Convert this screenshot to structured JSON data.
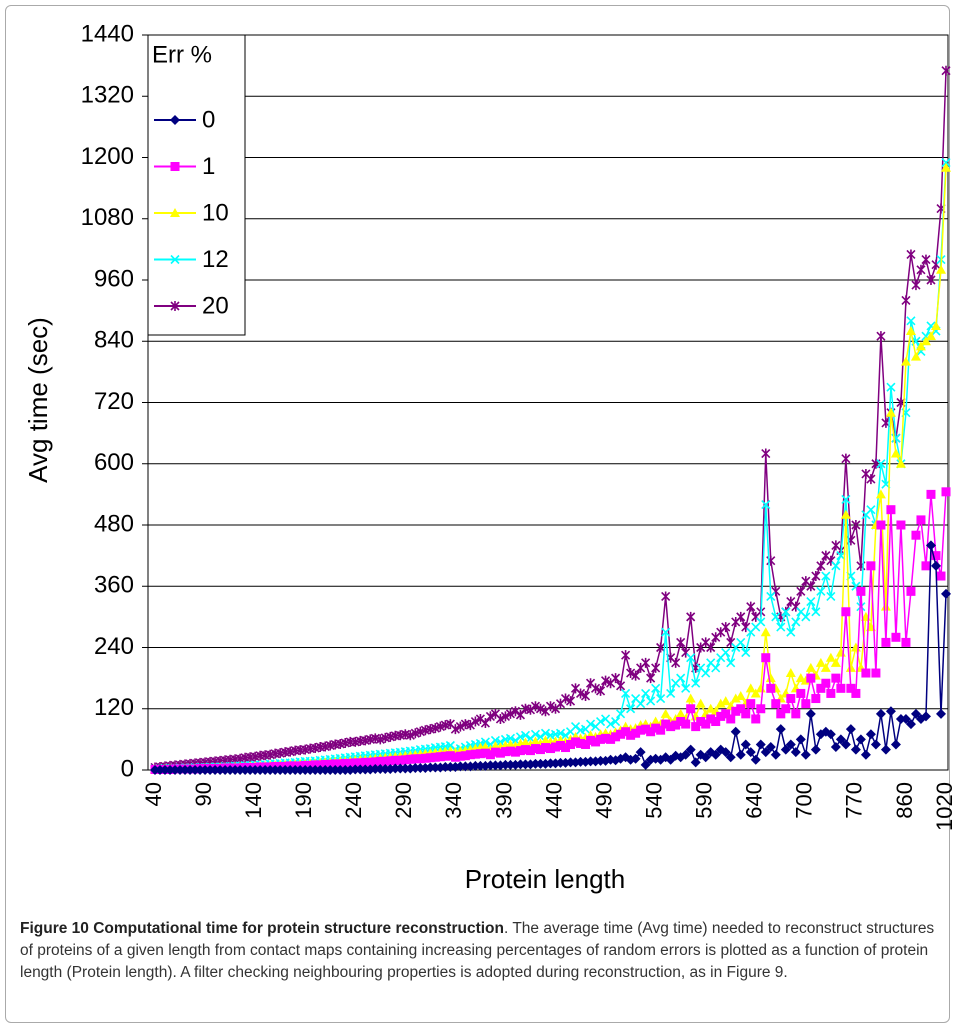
{
  "chart_data": {
    "type": "line",
    "x_label": "Protein length",
    "y_label": "Avg time  (sec)",
    "legend_title": "Err %",
    "legend": "upper left",
    "grid": true,
    "ylim": [
      0,
      1440
    ],
    "yticks": [
      0,
      120,
      240,
      360,
      480,
      600,
      720,
      840,
      960,
      1080,
      1200,
      1320,
      1440
    ],
    "categories": [
      "40",
      null,
      null,
      null,
      null,
      null,
      null,
      null,
      null,
      null,
      "90",
      null,
      null,
      null,
      null,
      null,
      null,
      null,
      null,
      null,
      "140",
      null,
      null,
      null,
      null,
      null,
      null,
      null,
      null,
      null,
      "190",
      null,
      null,
      null,
      null,
      null,
      null,
      null,
      null,
      null,
      "240",
      null,
      null,
      null,
      null,
      null,
      null,
      null,
      null,
      null,
      "290",
      null,
      null,
      null,
      null,
      null,
      null,
      null,
      null,
      null,
      "340",
      null,
      null,
      null,
      null,
      null,
      null,
      null,
      null,
      null,
      "390",
      null,
      null,
      null,
      null,
      null,
      null,
      null,
      null,
      null,
      "440",
      null,
      null,
      null,
      null,
      null,
      null,
      null,
      null,
      null,
      "490",
      null,
      null,
      null,
      null,
      null,
      null,
      null,
      null,
      null,
      "540",
      null,
      null,
      null,
      null,
      null,
      null,
      null,
      null,
      null,
      "590",
      null,
      null,
      null,
      null,
      null,
      null,
      null,
      null,
      null,
      "640",
      null,
      null,
      null,
      null,
      null,
      null,
      null,
      null,
      null,
      "700",
      null,
      null,
      null,
      null,
      null,
      null,
      null,
      null,
      null,
      "770",
      null,
      null,
      null,
      null,
      null,
      null,
      null,
      null,
      null,
      "860",
      null,
      null,
      null,
      null,
      null,
      null,
      null,
      "1020"
    ],
    "series": [
      {
        "name": "0",
        "color": "#000080",
        "marker": "diamond",
        "values": [
          0,
          0,
          0,
          0,
          0,
          0,
          0,
          0,
          0,
          0,
          0,
          0,
          0,
          0,
          0,
          0,
          0,
          0,
          0,
          0,
          0,
          0,
          0,
          0,
          0,
          0,
          0,
          0,
          0,
          0,
          0,
          0,
          0,
          0,
          0,
          0,
          0,
          0,
          0,
          0,
          1,
          1,
          1,
          1,
          2,
          2,
          2,
          2,
          3,
          3,
          3,
          3,
          4,
          4,
          4,
          5,
          5,
          5,
          6,
          6,
          6,
          7,
          7,
          7,
          8,
          8,
          8,
          9,
          9,
          9,
          10,
          10,
          10,
          11,
          11,
          11,
          12,
          12,
          12,
          13,
          13,
          14,
          14,
          15,
          15,
          16,
          16,
          17,
          17,
          18,
          18,
          20,
          19,
          22,
          25,
          20,
          22,
          35,
          10,
          20,
          22,
          20,
          25,
          20,
          28,
          25,
          30,
          40,
          15,
          30,
          25,
          35,
          30,
          40,
          35,
          25,
          75,
          30,
          50,
          35,
          20,
          50,
          35,
          45,
          30,
          80,
          40,
          50,
          35,
          60,
          30,
          110,
          40,
          70,
          75,
          70,
          45,
          60,
          50,
          80,
          40,
          60,
          30,
          70,
          50,
          110,
          40,
          115,
          50,
          100,
          100,
          90,
          110,
          100,
          105,
          440,
          400,
          110,
          345
        ]
      },
      {
        "name": "1",
        "color": "#ff00ff",
        "marker": "square",
        "values": [
          1,
          1,
          1,
          1,
          2,
          2,
          2,
          2,
          2,
          3,
          3,
          3,
          3,
          3,
          4,
          4,
          4,
          4,
          5,
          5,
          5,
          6,
          6,
          6,
          7,
          7,
          7,
          8,
          8,
          8,
          9,
          9,
          10,
          10,
          11,
          11,
          12,
          12,
          13,
          13,
          14,
          14,
          15,
          15,
          16,
          17,
          17,
          18,
          19,
          19,
          20,
          21,
          22,
          22,
          23,
          24,
          25,
          26,
          27,
          28,
          25,
          27,
          28,
          30,
          31,
          32,
          33,
          30,
          35,
          33,
          36,
          37,
          35,
          38,
          40,
          38,
          42,
          40,
          44,
          42,
          45,
          48,
          44,
          50,
          55,
          52,
          50,
          58,
          55,
          60,
          62,
          60,
          65,
          70,
          75,
          68,
          72,
          78,
          80,
          75,
          82,
          78,
          90,
          85,
          88,
          95,
          90,
          120,
          85,
          95,
          90,
          100,
          95,
          105,
          110,
          100,
          115,
          120,
          110,
          130,
          100,
          120,
          220,
          160,
          130,
          110,
          120,
          140,
          110,
          150,
          130,
          180,
          140,
          160,
          170,
          150,
          180,
          160,
          310,
          160,
          150,
          350,
          190,
          400,
          190,
          480,
          250,
          510,
          260,
          480,
          250,
          350,
          460,
          490,
          400,
          540,
          420,
          380,
          545
        ]
      },
      {
        "name": "10",
        "color": "#ffff00",
        "marker": "triangle",
        "values": [
          1,
          1,
          2,
          2,
          2,
          2,
          3,
          3,
          3,
          3,
          4,
          4,
          4,
          5,
          5,
          5,
          6,
          6,
          6,
          7,
          7,
          8,
          8,
          9,
          9,
          10,
          10,
          11,
          11,
          12,
          12,
          13,
          13,
          14,
          15,
          15,
          16,
          17,
          17,
          18,
          19,
          20,
          20,
          21,
          22,
          23,
          24,
          25,
          26,
          27,
          28,
          29,
          30,
          31,
          32,
          33,
          34,
          35,
          36,
          37,
          35,
          37,
          38,
          40,
          42,
          44,
          45,
          40,
          47,
          45,
          48,
          50,
          47,
          52,
          54,
          50,
          56,
          52,
          58,
          55,
          56,
          58,
          55,
          60,
          65,
          62,
          63,
          68,
          65,
          70,
          72,
          70,
          74,
          78,
          85,
          80,
          82,
          88,
          90,
          85,
          95,
          90,
          110,
          95,
          100,
          110,
          100,
          140,
          105,
          130,
          110,
          120,
          115,
          130,
          135,
          125,
          140,
          145,
          130,
          160,
          150,
          160,
          270,
          180,
          160,
          140,
          150,
          190,
          160,
          180,
          175,
          200,
          185,
          210,
          200,
          220,
          210,
          230,
          500,
          200,
          240,
          200,
          300,
          280,
          480,
          540,
          320,
          700,
          620,
          600,
          800,
          860,
          810,
          830,
          840,
          850,
          870,
          980,
          1180
        ]
      },
      {
        "name": "12",
        "color": "#00ffff",
        "marker": "x",
        "values": [
          2,
          2,
          3,
          3,
          3,
          4,
          4,
          4,
          5,
          5,
          5,
          6,
          6,
          6,
          7,
          7,
          8,
          8,
          9,
          9,
          10,
          10,
          11,
          12,
          12,
          13,
          14,
          14,
          15,
          16,
          17,
          17,
          18,
          19,
          20,
          21,
          22,
          23,
          24,
          25,
          26,
          27,
          28,
          29,
          30,
          31,
          32,
          33,
          34,
          35,
          36,
          37,
          38,
          40,
          41,
          42,
          44,
          45,
          46,
          48,
          40,
          42,
          45,
          48,
          50,
          52,
          55,
          50,
          58,
          55,
          60,
          62,
          58,
          65,
          68,
          62,
          70,
          65,
          72,
          68,
          70,
          72,
          68,
          75,
          85,
          78,
          80,
          90,
          85,
          95,
          100,
          90,
          95,
          110,
          150,
          120,
          140,
          130,
          150,
          135,
          160,
          140,
          270,
          150,
          170,
          180,
          160,
          220,
          170,
          200,
          190,
          210,
          200,
          220,
          230,
          210,
          240,
          250,
          230,
          270,
          280,
          290,
          520,
          340,
          300,
          280,
          310,
          270,
          290,
          310,
          300,
          330,
          310,
          350,
          380,
          340,
          400,
          420,
          530,
          380,
          360,
          320,
          500,
          510,
          480,
          600,
          560,
          750,
          650,
          600,
          700,
          880,
          840,
          820,
          850,
          870,
          860,
          1000,
          1190
        ]
      },
      {
        "name": "20",
        "color": "#800080",
        "marker": "star",
        "values": [
          5,
          6,
          7,
          8,
          9,
          10,
          11,
          12,
          13,
          14,
          15,
          16,
          17,
          18,
          19,
          20,
          21,
          22,
          24,
          25,
          26,
          28,
          29,
          30,
          32,
          33,
          35,
          36,
          38,
          39,
          40,
          42,
          43,
          45,
          46,
          48,
          50,
          51,
          53,
          55,
          55,
          57,
          58,
          60,
          62,
          60,
          63,
          65,
          67,
          68,
          70,
          68,
          72,
          75,
          78,
          80,
          82,
          85,
          88,
          90,
          80,
          85,
          90,
          88,
          95,
          100,
          92,
          105,
          110,
          100,
          105,
          110,
          115,
          108,
          120,
          118,
          125,
          120,
          115,
          125,
          120,
          130,
          140,
          135,
          160,
          150,
          145,
          170,
          160,
          155,
          175,
          170,
          180,
          165,
          225,
          190,
          185,
          200,
          210,
          180,
          200,
          240,
          340,
          220,
          210,
          250,
          230,
          300,
          200,
          240,
          250,
          240,
          260,
          270,
          280,
          250,
          290,
          300,
          280,
          320,
          300,
          310,
          620,
          410,
          350,
          300,
          310,
          330,
          320,
          350,
          370,
          360,
          380,
          400,
          420,
          410,
          440,
          430,
          610,
          450,
          480,
          400,
          580,
          570,
          600,
          850,
          680,
          700,
          650,
          720,
          920,
          1010,
          950,
          980,
          1000,
          960,
          990,
          1100,
          1370
        ]
      }
    ]
  },
  "caption": {
    "title": "Figure 10 Computational time for protein structure reconstruction",
    "text": ". The average time (Avg time) needed to reconstruct structures of proteins of a given length from contact maps containing increasing percentages of random errors is plotted as a function of protein length (Protein length). A filter checking neighbouring properties is adopted during reconstruction, as in Figure 9."
  }
}
